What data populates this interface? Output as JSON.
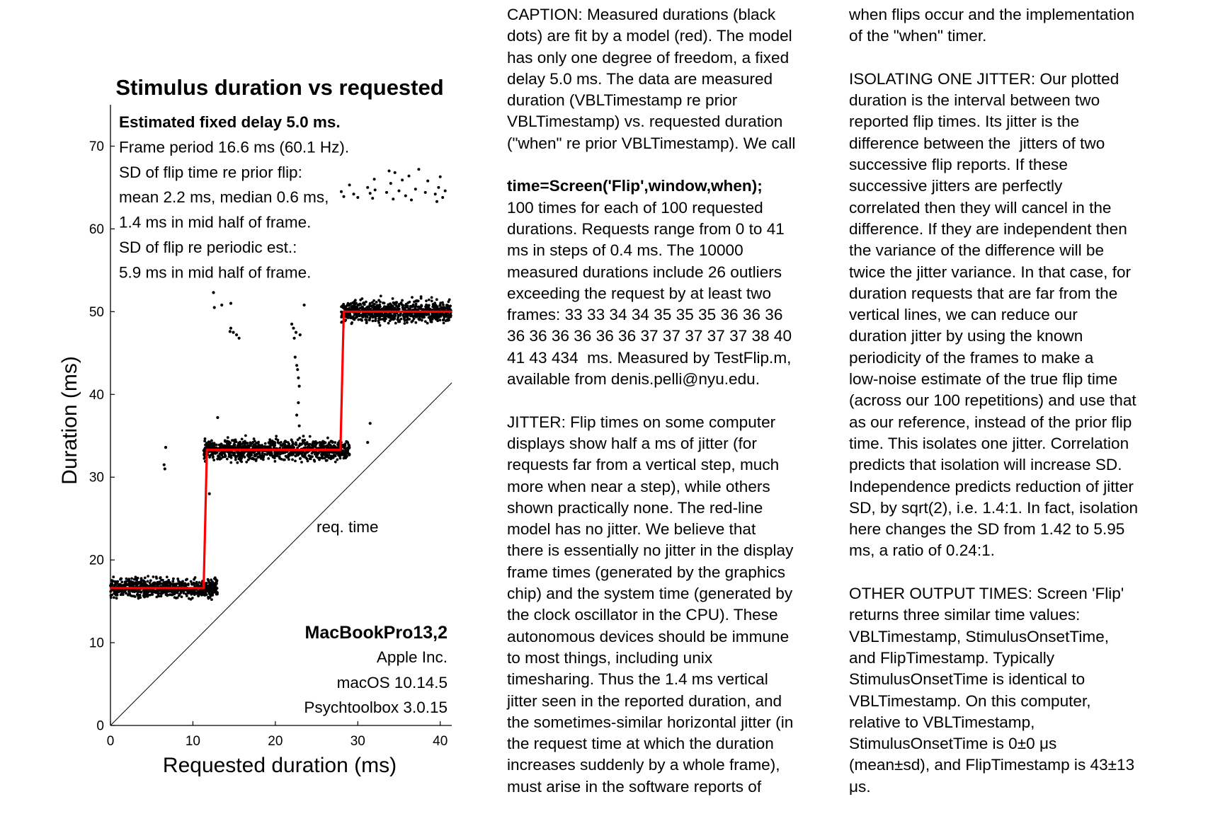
{
  "colors": {
    "dots": "#000000",
    "model": "#ff0000",
    "diagonal": "#000000",
    "axis": "#000000"
  },
  "chart_data": {
    "type": "scatter",
    "title": "Stimulus duration vs requested",
    "xlabel": "Requested duration (ms)",
    "ylabel": "Duration (ms)",
    "xlim": [
      0,
      41.4
    ],
    "ylim": [
      0,
      75
    ],
    "xticks": [
      0,
      10,
      20,
      30,
      40
    ],
    "yticks": [
      0,
      10,
      20,
      30,
      40,
      50,
      60,
      70
    ],
    "grid": false,
    "series": [
      {
        "kind": "scatter",
        "clusters": [
          {
            "x_range": [
              0,
              13
            ],
            "y_center": 16.6,
            "y_spread": 1.2
          },
          {
            "x_range": [
              11.3,
              29.0
            ],
            "y_center": 33.3,
            "y_spread": 1.3
          },
          {
            "x_range": [
              28.0,
              41.4
            ],
            "y_center": 50.0,
            "y_spread": 1.4
          }
        ],
        "outliers": [
          [
            6.7,
            33.6
          ],
          [
            6.5,
            31.5
          ],
          [
            6.6,
            31.0
          ],
          [
            12.0,
            28.0
          ],
          [
            13.0,
            37.2
          ],
          [
            12.5,
            52.3
          ],
          [
            12.6,
            50.5
          ],
          [
            13.5,
            50.8
          ],
          [
            14.6,
            51.0
          ],
          [
            14.6,
            48.0
          ],
          [
            14.9,
            47.5
          ],
          [
            15.3,
            47.2
          ],
          [
            15.6,
            46.8
          ],
          [
            14.5,
            47.6
          ],
          [
            22.4,
            44.5
          ],
          [
            22.6,
            43.5
          ],
          [
            22.7,
            43.0
          ],
          [
            22.8,
            42.0
          ],
          [
            22.9,
            41.0
          ],
          [
            22.6,
            37.5
          ],
          [
            22.9,
            36.2
          ],
          [
            22.8,
            39.0
          ],
          [
            22.0,
            48.5
          ],
          [
            22.2,
            48.0
          ],
          [
            22.5,
            47.5
          ],
          [
            23.0,
            47.2
          ],
          [
            22.3,
            46.8
          ],
          [
            23.5,
            50.8
          ],
          [
            31.5,
            36.5
          ],
          [
            31.2,
            34.2
          ]
        ]
      },
      {
        "kind": "model",
        "points": [
          [
            0,
            16.6
          ],
          [
            11.3,
            16.6
          ],
          [
            11.7,
            33.3
          ],
          [
            27.9,
            33.3
          ],
          [
            28.3,
            50.0
          ],
          [
            41.4,
            50.0
          ]
        ]
      },
      {
        "kind": "diagonal",
        "points": [
          [
            0,
            0
          ],
          [
            41.4,
            41.4
          ]
        ]
      }
    ],
    "annotations": {
      "stats": [
        "Estimated fixed delay 5.0 ms.",
        "Frame period 16.6 ms (60.1 Hz).",
        "SD of flip time re prior flip:",
        "mean 2.2 ms, median 0.6 ms,",
        "1.4 ms in mid half of frame.",
        "SD of flip re periodic est.:",
        "5.9 ms in mid half of frame."
      ],
      "diagonal_label": "req. time",
      "machine": [
        "MacBookPro13,2",
        "Apple Inc.",
        "macOS 10.14.5",
        "Psychtoolbox 3.0.15"
      ]
    }
  },
  "text_col_1": [
    [
      "CAPTION: Measured durations (black",
      "dots) are fit by a model (red). The model",
      "has only one degree of freedom, a fixed",
      "delay 5.0 ms. The data are measured",
      "duration (VBLTimestamp re prior",
      "VBLTimestamp) vs. requested duration",
      "(\"when\" re prior VBLTimestamp). We call"
    ],
    [
      "time=Screen('Flip',window,when);",
      "100 times for each of 100 requested",
      "durations. Requests range from 0 to 41",
      "ms in steps of 0.4 ms. The 10000",
      "measured durations include 26 outliers",
      "exceeding the request by at least two",
      "frames: 33 33 34 34 35 35 35 36 36 36",
      "36 36 36 36 36 36 37 37 37 37 37 38 40",
      "41 43 434  ms. Measured by TestFlip.m,",
      "available from denis.pelli@nyu.edu."
    ],
    [
      "JITTER: Flip times on some computer",
      "displays show half a ms of jitter (for",
      "requests far from a vertical step, much",
      "more when near a step), while others",
      "shown practically none. The red-line",
      "model has no jitter. We believe that",
      "there is essentially no jitter in the display",
      "frame times (generated by the graphics",
      "chip) and the system time (generated by",
      "the clock oscillator in the CPU). These",
      "autonomous devices should be immune",
      "to most things, including unix",
      "timesharing. Thus the 1.4 ms vertical",
      "jitter seen in the reported duration, and",
      "the sometimes-similar horizontal jitter (in",
      "the request time at which the duration",
      "increases suddenly by a whole frame),",
      "must arise in the software reports of"
    ]
  ],
  "text_col_2": [
    [
      "when flips occur and the implementation",
      "of the \"when\" timer."
    ],
    [
      "ISOLATING ONE JITTER: Our plotted",
      "duration is the interval between two",
      "reported flip times. Its jitter is the",
      "difference between the  jitters of two",
      "successive flip reports. If these",
      "successive jitters are perfectly",
      "correlated then they will cancel in the",
      "difference. If they are independent then",
      "the variance of the difference will be",
      "twice the jitter variance. In that case, for",
      "duration requests that are far from the",
      "vertical lines, we can reduce our",
      "duration jitter by using the known",
      "periodicity of the frames to make a",
      "low-noise estimate of the true flip time",
      "(across our 100 repetitions) and use that",
      "as our reference, instead of the prior flip",
      "time. This isolates one jitter. Correlation",
      "predicts that isolation will increase SD.",
      "Independence predicts reduction of jitter",
      "SD, by sqrt(2), i.e. 1.4:1. In fact, isolation",
      "here changes the SD from 1.42 to 5.95",
      "ms, a ratio of 0.24:1."
    ],
    [
      "OTHER OUTPUT TIMES: Screen 'Flip'",
      "returns three similar time values:",
      "VBLTimestamp, StimulusOnsetTime,",
      "and FlipTimestamp. Typically",
      "StimulusOnsetTime is identical to",
      "VBLTimestamp. On this computer,",
      "relative to VBLTimestamp,",
      "StimulusOnsetTime is 0±0 μs",
      "(mean±sd), and FlipTimestamp is 43±13",
      "μs."
    ]
  ]
}
